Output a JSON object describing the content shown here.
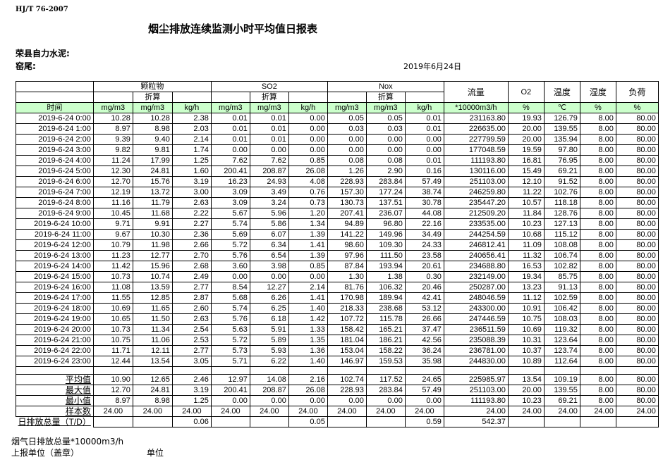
{
  "header": {
    "standard": "HJ/T  76-2007",
    "title": "烟尘排放连续监测小时平均值日报表",
    "company": "荣县自力水泥:",
    "kiln": "窑尾:",
    "date": "2019年6月24日"
  },
  "table": {
    "groups": [
      "颗粒物",
      "SO2",
      "Nox"
    ],
    "sub_label": "折算",
    "flow_label": "流量",
    "o2_label": "O2",
    "temp_label": "温度",
    "humidity_label": "湿度",
    "load_label": "负荷",
    "units": [
      "时间",
      "mg/m3",
      "mg/m3",
      "kg/h",
      "mg/m3",
      "mg/m3",
      "kg/h",
      "mg/m3",
      "mg/m3",
      "kg/h",
      "*10000m3/h",
      "%",
      "℃",
      "%",
      "%"
    ],
    "header_color": "#ccffcc",
    "rows": [
      [
        "2019-6-24 0:00",
        "10.28",
        "10.28",
        "2.38",
        "0.01",
        "0.01",
        "0.00",
        "0.05",
        "0.05",
        "0.01",
        "231163.80",
        "19.93",
        "126.79",
        "8.00",
        "80.00"
      ],
      [
        "2019-6-24 1:00",
        "8.97",
        "8.98",
        "2.03",
        "0.01",
        "0.01",
        "0.00",
        "0.03",
        "0.03",
        "0.01",
        "226635.00",
        "20.00",
        "139.55",
        "8.00",
        "80.00"
      ],
      [
        "2019-6-24 2:00",
        "9.39",
        "9.40",
        "2.14",
        "0.01",
        "0.01",
        "0.00",
        "0.00",
        "0.00",
        "0.00",
        "227799.59",
        "20.00",
        "135.94",
        "8.00",
        "80.00"
      ],
      [
        "2019-6-24 3:00",
        "9.82",
        "9.81",
        "1.74",
        "0.00",
        "0.00",
        "0.00",
        "0.00",
        "0.00",
        "0.00",
        "177048.59",
        "19.59",
        "97.80",
        "8.00",
        "80.00"
      ],
      [
        "2019-6-24 4:00",
        "11.24",
        "17.99",
        "1.25",
        "7.62",
        "7.62",
        "0.85",
        "0.08",
        "0.08",
        "0.01",
        "111193.80",
        "16.81",
        "76.95",
        "8.00",
        "80.00"
      ],
      [
        "2019-6-24 5:00",
        "12.30",
        "24.81",
        "1.60",
        "200.41",
        "208.87",
        "26.08",
        "1.26",
        "2.90",
        "0.16",
        "130116.00",
        "15.49",
        "69.21",
        "8.00",
        "80.00"
      ],
      [
        "2019-6-24 6:00",
        "12.70",
        "15.76",
        "3.19",
        "16.23",
        "24.93",
        "4.08",
        "228.93",
        "283.84",
        "57.49",
        "251103.00",
        "12.10",
        "91.52",
        "8.00",
        "80.00"
      ],
      [
        "2019-6-24 7:00",
        "12.19",
        "13.72",
        "3.00",
        "3.09",
        "3.49",
        "0.76",
        "157.30",
        "177.24",
        "38.74",
        "246259.80",
        "11.22",
        "102.76",
        "8.00",
        "80.00"
      ],
      [
        "2019-6-24 8:00",
        "11.16",
        "11.79",
        "2.63",
        "3.09",
        "3.24",
        "0.73",
        "130.73",
        "137.51",
        "30.78",
        "235447.20",
        "10.57",
        "118.18",
        "8.00",
        "80.00"
      ],
      [
        "2019-6-24 9:00",
        "10.45",
        "11.68",
        "2.22",
        "5.67",
        "5.96",
        "1.20",
        "207.41",
        "236.07",
        "44.08",
        "212509.20",
        "11.84",
        "128.76",
        "8.00",
        "80.00"
      ],
      [
        "2019-6-24 10:00",
        "9.71",
        "9.91",
        "2.27",
        "5.74",
        "5.86",
        "1.34",
        "94.89",
        "96.80",
        "22.16",
        "233535.00",
        "10.23",
        "127.13",
        "8.00",
        "80.00"
      ],
      [
        "2019-6-24 11:00",
        "9.67",
        "10.30",
        "2.36",
        "5.69",
        "6.07",
        "1.39",
        "141.22",
        "149.96",
        "34.49",
        "244254.59",
        "10.68",
        "115.12",
        "8.00",
        "80.00"
      ],
      [
        "2019-6-24 12:00",
        "10.79",
        "11.98",
        "2.66",
        "5.72",
        "6.34",
        "1.41",
        "98.60",
        "109.30",
        "24.33",
        "246812.41",
        "11.09",
        "108.08",
        "8.00",
        "80.00"
      ],
      [
        "2019-6-24 13:00",
        "11.23",
        "12.77",
        "2.70",
        "5.76",
        "6.54",
        "1.39",
        "97.96",
        "111.50",
        "23.58",
        "240656.41",
        "11.32",
        "106.74",
        "8.00",
        "80.00"
      ],
      [
        "2019-6-24 14:00",
        "11.42",
        "15.96",
        "2.68",
        "3.60",
        "3.98",
        "0.85",
        "87.84",
        "193.94",
        "20.61",
        "234688.80",
        "16.53",
        "102.82",
        "8.00",
        "80.00"
      ],
      [
        "2019-6-24 15:00",
        "10.73",
        "10.74",
        "2.49",
        "0.00",
        "0.00",
        "0.00",
        "1.30",
        "1.38",
        "0.30",
        "232149.00",
        "19.34",
        "85.75",
        "8.00",
        "80.00"
      ],
      [
        "2019-6-24 16:00",
        "11.08",
        "13.59",
        "2.77",
        "8.54",
        "12.27",
        "2.14",
        "81.76",
        "106.32",
        "20.46",
        "250287.00",
        "13.23",
        "91.13",
        "8.00",
        "80.00"
      ],
      [
        "2019-6-24 17:00",
        "11.55",
        "12.85",
        "2.87",
        "5.68",
        "6.26",
        "1.41",
        "170.98",
        "189.94",
        "42.41",
        "248046.59",
        "11.12",
        "102.59",
        "8.00",
        "80.00"
      ],
      [
        "2019-6-24 18:00",
        "10.69",
        "11.65",
        "2.60",
        "5.74",
        "6.25",
        "1.40",
        "218.33",
        "238.68",
        "53.12",
        "243300.00",
        "10.91",
        "106.42",
        "8.00",
        "80.00"
      ],
      [
        "2019-6-24 19:00",
        "10.65",
        "11.50",
        "2.63",
        "5.76",
        "6.18",
        "1.42",
        "107.72",
        "115.78",
        "26.66",
        "247446.59",
        "10.75",
        "108.03",
        "8.00",
        "80.00"
      ],
      [
        "2019-6-24 20:00",
        "10.73",
        "11.34",
        "2.54",
        "5.63",
        "5.91",
        "1.33",
        "158.42",
        "165.21",
        "37.47",
        "236511.59",
        "10.69",
        "119.32",
        "8.00",
        "80.00"
      ],
      [
        "2019-6-24 21:00",
        "10.75",
        "11.06",
        "2.53",
        "5.72",
        "5.89",
        "1.35",
        "181.04",
        "186.21",
        "42.56",
        "235088.39",
        "10.31",
        "123.64",
        "8.00",
        "80.00"
      ],
      [
        "2019-6-24 22:00",
        "11.71",
        "12.11",
        "2.77",
        "5.73",
        "5.93",
        "1.36",
        "153.04",
        "158.22",
        "36.24",
        "236781.00",
        "10.37",
        "123.74",
        "8.00",
        "80.00"
      ],
      [
        "2019-6-24 23:00",
        "12.44",
        "13.54",
        "3.05",
        "5.71",
        "6.22",
        "1.40",
        "146.97",
        "159.53",
        "35.98",
        "244830.00",
        "10.89",
        "112.64",
        "8.00",
        "80.00"
      ]
    ],
    "summary": [
      [
        "平均值",
        "10.90",
        "12.65",
        "2.46",
        "12.97",
        "14.08",
        "2.16",
        "102.74",
        "117.52",
        "24.65",
        "225985.97",
        "13.54",
        "109.19",
        "8.00",
        "80.00"
      ],
      [
        "最大值",
        "12.70",
        "24.81",
        "3.19",
        "200.41",
        "208.87",
        "26.08",
        "228.93",
        "283.84",
        "57.49",
        "251103.00",
        "20.00",
        "139.55",
        "8.00",
        "80.00"
      ],
      [
        "最小值",
        "8.97",
        "8.98",
        "1.25",
        "0.00",
        "0.00",
        "0.00",
        "0.00",
        "0.00",
        "0.00",
        "111193.80",
        "10.23",
        "69.21",
        "8.00",
        "80.00"
      ],
      [
        "样本数",
        "24.00",
        "24.00",
        "24.00",
        "24.00",
        "24.00",
        "24.00",
        "24.00",
        "24.00",
        "24.00",
        "24.00",
        "24.00",
        "24.00",
        "24.00",
        "24.00"
      ],
      [
        "日排放总量（T/D）",
        "",
        "",
        "0.06",
        "",
        "",
        "0.05",
        "",
        "",
        "0.59",
        "542.37",
        "",
        "",
        "",
        ""
      ]
    ]
  },
  "footer": {
    "flue_total": "烟气日排放总量*10000m3/h",
    "reporter": "上报单位（盖章）",
    "unit": "单位"
  }
}
